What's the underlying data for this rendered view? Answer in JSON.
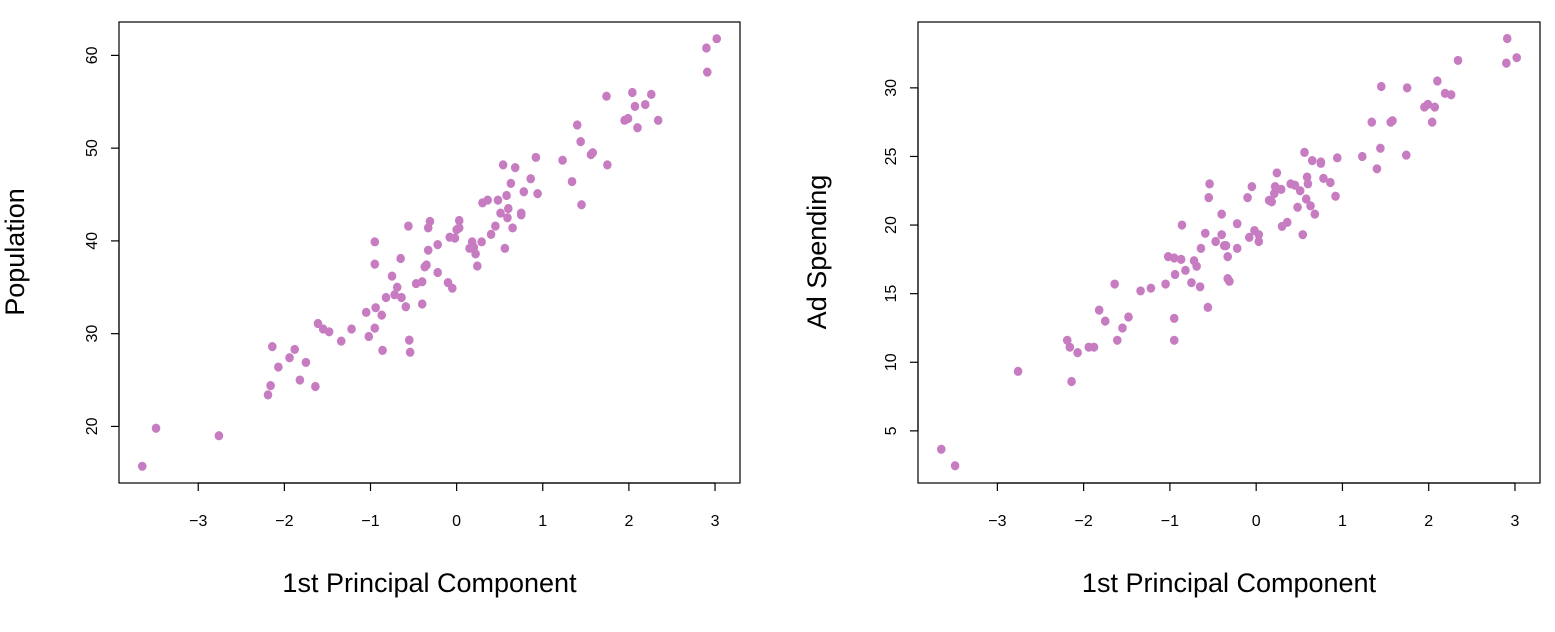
{
  "point_color": "#C77CC2",
  "chart_data": [
    {
      "type": "scatter",
      "title": "",
      "xlabel": "1st Principal Component",
      "ylabel": "Population",
      "xlim": [
        -3.92,
        3.29
      ],
      "ylim": [
        13.9,
        63.6
      ],
      "xticks": [
        -3,
        -2,
        -1,
        0,
        1,
        2,
        3
      ],
      "yticks": [
        20,
        30,
        40,
        50,
        60
      ],
      "grid": false,
      "x": [
        -3.65,
        -3.49,
        -2.76,
        -2.19,
        -2.16,
        -2.14,
        -2.07,
        -1.94,
        -1.88,
        -1.82,
        -1.75,
        -1.64,
        -1.61,
        -1.55,
        -1.48,
        -1.34,
        -1.22,
        -1.05,
        -1.02,
        -0.95,
        -0.94,
        -0.95,
        -0.95,
        -0.87,
        -0.86,
        -0.82,
        -0.75,
        -0.72,
        -0.69,
        -0.65,
        -0.64,
        -0.59,
        -0.56,
        -0.55,
        -0.54,
        -0.47,
        -0.4,
        -0.4,
        -0.37,
        -0.35,
        -0.33,
        -0.33,
        -0.31,
        -0.22,
        -0.22,
        -0.1,
        -0.08,
        -0.05,
        -0.02,
        0.0,
        0.03,
        0.03,
        0.15,
        0.18,
        0.2,
        0.22,
        0.24,
        0.29,
        0.3,
        0.36,
        0.4,
        0.45,
        0.48,
        0.51,
        0.54,
        0.56,
        0.58,
        0.59,
        0.6,
        0.63,
        0.65,
        0.68,
        0.75,
        0.75,
        0.78,
        0.86,
        0.92,
        0.94,
        1.23,
        1.34,
        1.4,
        1.44,
        1.45,
        1.56,
        1.58,
        1.74,
        1.75,
        1.95,
        1.99,
        2.04,
        2.07,
        2.1,
        2.19,
        2.26,
        2.34,
        2.9,
        2.91,
        3.02
      ],
      "y": [
        15.7,
        19.8,
        19.0,
        23.4,
        24.4,
        28.6,
        26.4,
        27.4,
        28.3,
        25.0,
        26.9,
        24.3,
        31.1,
        30.5,
        30.2,
        29.2,
        30.5,
        32.3,
        29.7,
        30.6,
        32.8,
        39.9,
        37.5,
        32.0,
        28.2,
        33.9,
        36.2,
        34.2,
        35.0,
        38.1,
        33.9,
        32.9,
        41.6,
        29.3,
        28.0,
        35.4,
        35.6,
        33.2,
        37.2,
        37.4,
        41.4,
        39.0,
        42.1,
        36.6,
        39.6,
        35.5,
        40.4,
        34.9,
        40.3,
        41.2,
        42.2,
        41.4,
        39.2,
        39.9,
        39.3,
        38.6,
        37.3,
        39.9,
        44.1,
        44.4,
        40.7,
        41.6,
        44.4,
        43.0,
        48.2,
        39.2,
        44.9,
        42.5,
        43.5,
        46.2,
        41.4,
        47.9,
        43.0,
        42.8,
        45.3,
        46.7,
        49.0,
        45.1,
        48.7,
        46.4,
        52.5,
        50.7,
        43.9,
        49.3,
        49.5,
        55.6,
        48.2,
        53.0,
        53.2,
        56.0,
        54.5,
        52.2,
        54.7,
        55.8,
        53.0,
        60.8,
        58.2,
        61.8
      ],
      "tick_labels_x": [
        "−3",
        "−2",
        "−1",
        "0",
        "1",
        "2",
        "3"
      ],
      "tick_labels_y": [
        "20",
        "30",
        "40",
        "50",
        "60"
      ]
    },
    {
      "type": "scatter",
      "title": "",
      "xlabel": "1st Principal Component",
      "ylabel": "Ad Spending",
      "xlim": [
        -3.92,
        3.29
      ],
      "ylim": [
        1.2,
        34.8
      ],
      "xticks": [
        -3,
        -2,
        -1,
        0,
        1,
        2,
        3
      ],
      "yticks": [
        5,
        10,
        15,
        20,
        25,
        30
      ],
      "grid": false,
      "x": [
        -3.65,
        -3.49,
        -2.76,
        -2.19,
        -2.16,
        -2.14,
        -2.07,
        -1.94,
        -1.88,
        -1.82,
        -1.75,
        -1.64,
        -1.61,
        -1.55,
        -1.48,
        -1.34,
        -1.22,
        -1.05,
        -1.02,
        -0.95,
        -0.95,
        -0.95,
        -0.94,
        -0.87,
        -0.86,
        -0.82,
        -0.75,
        -0.72,
        -0.69,
        -0.65,
        -0.64,
        -0.59,
        -0.56,
        -0.55,
        -0.54,
        -0.47,
        -0.4,
        -0.4,
        -0.37,
        -0.35,
        -0.33,
        -0.33,
        -0.31,
        -0.22,
        -0.22,
        -0.1,
        -0.08,
        -0.05,
        -0.02,
        0.03,
        0.03,
        0.15,
        0.18,
        0.21,
        0.22,
        0.24,
        0.29,
        0.3,
        0.36,
        0.4,
        0.45,
        0.48,
        0.51,
        0.54,
        0.56,
        0.58,
        0.59,
        0.6,
        0.63,
        0.65,
        0.68,
        0.75,
        0.75,
        0.78,
        0.86,
        0.92,
        0.94,
        1.23,
        1.34,
        1.4,
        1.44,
        1.45,
        1.56,
        1.58,
        1.74,
        1.75,
        1.95,
        1.99,
        2.04,
        2.07,
        2.1,
        2.19,
        2.26,
        2.34,
        2.9,
        2.91,
        3.02
      ],
      "y": [
        3.66,
        2.46,
        9.34,
        11.6,
        11.1,
        8.6,
        10.7,
        11.1,
        11.1,
        13.8,
        13.0,
        15.7,
        11.6,
        12.5,
        13.3,
        15.2,
        15.4,
        15.7,
        17.7,
        17.6,
        13.2,
        11.6,
        16.4,
        17.5,
        20.0,
        16.7,
        15.8,
        17.4,
        17.0,
        15.5,
        18.3,
        19.4,
        14.0,
        22.0,
        23.0,
        18.8,
        20.8,
        19.3,
        18.5,
        18.5,
        17.7,
        16.1,
        15.9,
        20.1,
        18.3,
        22.0,
        19.1,
        22.8,
        19.6,
        19.3,
        18.8,
        21.8,
        21.7,
        22.3,
        22.8,
        23.8,
        22.6,
        19.9,
        20.2,
        23.0,
        22.9,
        21.3,
        22.5,
        19.3,
        25.3,
        21.9,
        23.5,
        23.0,
        21.4,
        24.7,
        20.8,
        24.6,
        24.5,
        23.4,
        23.1,
        22.1,
        24.9,
        25.0,
        27.5,
        24.1,
        25.6,
        30.1,
        27.5,
        27.6,
        25.1,
        30.0,
        28.6,
        28.8,
        27.5,
        28.6,
        30.5,
        29.6,
        29.5,
        32.0,
        31.8,
        33.6,
        32.2
      ],
      "tick_labels_x": [
        "−3",
        "−2",
        "−1",
        "0",
        "1",
        "2",
        "3"
      ],
      "tick_labels_y": [
        "5",
        "10",
        "15",
        "20",
        "25",
        "30"
      ]
    }
  ]
}
